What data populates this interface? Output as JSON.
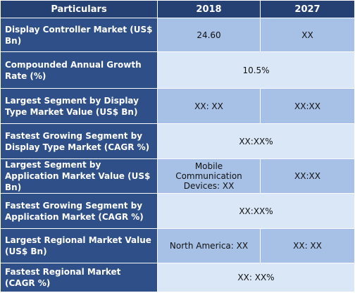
{
  "header": {
    "particulars": "Particulars",
    "col_2018": "2018",
    "col_2027": "2027"
  },
  "rows": [
    {
      "label": "Display Controller Market (US$ Bn)",
      "v2018": "24.60",
      "v2027": "XX"
    },
    {
      "label": "Compounded Annual Growth Rate (%)",
      "merged": "10.5%"
    },
    {
      "label": "Largest Segment by Display Type Market Value (US$ Bn)",
      "v2018": "XX: XX",
      "v2027": "XX:XX"
    },
    {
      "label": "Fastest Growing Segment by Display Type Market (CAGR %)",
      "merged": "XX:XX%"
    },
    {
      "label": "Largest Segment by Application Market Value (US$ Bn)",
      "v2018": "Mobile Communication Devices: XX",
      "v2027": "XX:XX"
    },
    {
      "label": "Fastest Growing Segment by Application Market (CAGR %)",
      "merged": "XX:XX%"
    },
    {
      "label": "Largest Regional Market Value (US$ Bn)",
      "v2018": "North America: XX",
      "v2027": "XX: XX"
    },
    {
      "label": "Fastest Regional Market (CAGR %)",
      "merged": "XX: XX%"
    }
  ]
}
